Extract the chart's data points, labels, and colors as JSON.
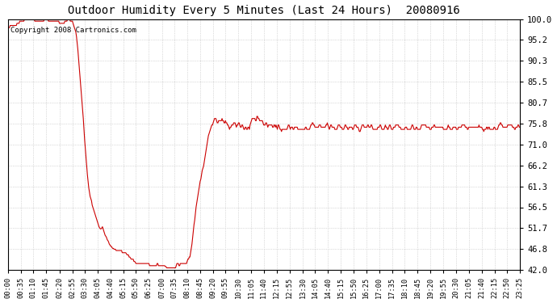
{
  "title": "Outdoor Humidity Every 5 Minutes (Last 24 Hours)  20080916",
  "copyright_text": "Copyright 2008 Cartronics.com",
  "line_color": "#cc0000",
  "bg_color": "#ffffff",
  "grid_color": "#aaaaaa",
  "ylim": [
    42.0,
    100.0
  ],
  "yticks": [
    42.0,
    46.8,
    51.7,
    56.5,
    61.3,
    66.2,
    71.0,
    75.8,
    80.7,
    85.5,
    90.3,
    95.2,
    100.0
  ],
  "x_labels": [
    "00:00",
    "00:35",
    "01:10",
    "01:45",
    "02:20",
    "02:55",
    "03:30",
    "04:05",
    "04:40",
    "05:15",
    "05:50",
    "06:25",
    "07:00",
    "07:35",
    "08:10",
    "08:45",
    "09:20",
    "09:55",
    "10:30",
    "11:05",
    "11:40",
    "12:15",
    "12:55",
    "13:30",
    "14:05",
    "14:40",
    "15:15",
    "15:50",
    "16:25",
    "17:00",
    "17:35",
    "18:10",
    "18:45",
    "19:20",
    "19:55",
    "20:30",
    "21:05",
    "21:40",
    "22:15",
    "22:50",
    "23:25"
  ],
  "humidity_values": [
    98.0,
    98.0,
    98.0,
    98.5,
    98.5,
    98.5,
    98.5,
    98.5,
    98.5,
    98.5,
    98.5,
    98.5,
    98.5,
    99.0,
    99.0,
    99.0,
    99.0,
    99.5,
    99.5,
    99.5,
    99.5,
    99.5,
    99.5,
    99.5,
    100.0,
    100.0,
    100.0,
    100.0,
    100.0,
    100.0,
    100.0,
    100.0,
    100.0,
    100.0,
    100.0,
    100.0,
    100.0,
    100.0,
    100.0,
    99.5,
    99.5,
    99.5,
    99.5,
    99.5,
    99.5,
    99.5,
    99.5,
    99.5,
    99.5,
    99.5,
    99.5,
    99.5,
    99.5,
    100.0,
    100.0,
    100.0,
    100.0,
    100.0,
    100.0,
    99.5,
    99.5,
    99.5,
    99.5,
    99.5,
    99.5,
    99.5,
    99.5,
    99.5,
    99.5,
    99.5,
    99.5,
    99.5,
    99.5,
    99.5,
    99.5,
    99.0,
    99.0,
    99.0,
    99.0,
    99.0,
    99.0,
    99.0,
    99.0,
    99.5,
    99.5,
    99.5,
    99.5,
    100.0,
    100.0,
    100.0,
    100.0,
    99.5,
    99.5,
    99.5,
    99.5,
    99.0,
    98.5,
    98.0,
    97.5,
    97.0,
    96.0,
    94.5,
    93.0,
    91.0,
    89.0,
    87.0,
    85.0,
    83.0,
    81.0,
    79.0,
    77.0,
    74.5,
    72.0,
    70.0,
    68.0,
    66.0,
    64.0,
    62.5,
    61.0,
    60.0,
    59.0,
    58.5,
    58.0,
    57.0,
    56.5,
    56.0,
    55.5,
    55.0,
    54.5,
    54.0,
    53.5,
    53.0,
    52.5,
    52.0,
    51.7,
    51.5,
    51.5,
    51.7,
    52.0,
    51.5,
    51.0,
    50.5,
    50.0,
    49.8,
    49.5,
    49.0,
    48.8,
    48.5,
    48.0,
    47.8,
    47.5,
    47.5,
    47.2,
    47.0,
    47.0,
    46.8,
    46.8,
    46.8,
    46.5,
    46.5,
    46.5,
    46.5,
    46.5,
    46.5,
    46.5,
    46.5,
    46.5,
    46.0,
    46.0,
    46.0,
    46.0,
    46.0,
    46.0,
    45.8,
    45.5,
    45.5,
    45.5,
    45.0,
    45.0,
    44.8,
    44.5,
    44.5,
    44.5,
    44.5,
    44.0,
    44.0,
    43.8,
    43.5,
    43.5,
    43.5,
    43.5,
    43.5,
    43.5,
    43.5,
    43.5,
    43.5,
    43.5,
    43.5,
    43.5,
    43.5,
    43.5,
    43.5,
    43.5,
    43.5,
    43.5,
    43.5,
    43.5,
    43.0,
    43.0,
    43.0,
    43.0,
    43.0,
    43.0,
    43.0,
    43.0,
    43.0,
    43.0,
    43.0,
    43.5,
    43.5,
    43.0,
    43.0,
    43.0,
    43.0,
    43.0,
    43.0,
    43.0,
    43.0,
    43.0,
    43.0,
    42.8,
    42.8,
    42.5,
    42.5,
    42.5,
    42.5,
    42.5,
    42.5,
    42.5,
    42.5,
    42.5,
    42.5,
    42.5,
    42.5,
    42.5,
    42.5,
    43.0,
    43.5,
    43.5,
    43.5,
    43.0,
    43.0,
    43.5,
    43.5,
    43.5,
    43.5,
    43.5,
    43.5,
    43.5,
    43.5,
    43.5,
    43.5,
    44.0,
    44.5,
    44.5,
    45.0,
    45.0,
    46.0,
    47.0,
    48.0,
    49.5,
    51.0,
    52.5,
    53.5,
    55.0,
    56.5,
    57.5,
    58.5,
    59.5,
    60.5,
    61.5,
    62.5,
    63.0,
    64.0,
    65.0,
    65.5,
    66.0,
    67.0,
    68.0,
    69.0,
    70.0,
    71.0,
    72.0,
    73.0,
    73.5,
    74.0,
    74.5,
    75.0,
    75.5,
    75.5,
    76.0,
    76.5,
    77.0,
    77.0,
    77.0,
    76.5,
    76.0,
    76.0,
    76.5,
    76.5,
    76.5,
    76.5,
    76.5,
    77.0,
    76.5,
    76.5,
    76.0,
    76.0,
    76.5,
    76.0,
    76.0,
    75.5,
    75.5,
    75.0,
    74.5,
    75.0,
    75.0,
    75.5,
    75.5,
    75.5,
    76.0,
    76.0,
    76.0,
    75.5,
    75.0,
    75.5,
    75.5,
    76.0,
    76.0,
    75.5,
    75.0,
    75.0,
    75.5,
    75.5,
    75.0,
    74.5,
    74.5,
    75.0,
    75.0,
    74.5,
    74.5,
    75.0,
    75.0,
    74.5,
    75.5,
    76.0,
    76.5,
    77.0,
    77.0,
    77.0,
    77.0,
    77.0,
    76.5,
    76.5,
    77.5,
    77.5,
    77.0,
    77.0,
    76.5,
    76.5,
    76.5,
    76.5,
    76.5,
    76.0,
    75.5,
    75.5,
    75.5,
    76.0,
    76.0,
    75.5,
    75.0,
    75.5,
    75.5,
    75.5,
    75.5,
    75.5,
    75.5,
    75.0,
    75.0,
    75.5,
    75.5,
    75.0,
    75.5,
    75.0,
    74.5,
    75.5,
    75.5,
    75.0,
    74.5,
    74.5,
    74.0,
    74.5,
    74.5,
    74.5,
    74.5,
    74.5,
    74.5,
    74.5,
    74.5,
    75.0,
    75.5,
    75.5,
    75.0,
    74.5,
    75.0,
    75.0,
    75.0,
    74.5,
    74.5,
    75.0,
    75.0,
    75.0,
    75.0,
    75.0,
    74.5,
    74.5,
    74.5,
    74.5,
    74.5,
    74.5,
    74.5,
    74.5,
    74.5,
    74.5,
    74.5,
    75.0,
    75.0,
    74.5,
    74.5,
    74.5,
    74.5,
    74.5,
    75.0,
    75.5,
    75.5,
    76.0,
    76.0,
    75.5,
    75.5,
    75.0,
    75.0,
    75.0,
    75.0,
    75.0,
    75.0,
    75.5,
    75.5,
    75.5,
    75.0,
    75.0,
    75.0,
    75.0,
    75.0,
    75.0,
    75.0,
    75.5,
    75.5,
    76.0,
    75.5,
    75.0,
    74.5,
    75.0,
    75.5,
    75.5,
    75.0,
    75.0,
    75.0,
    75.0,
    74.5,
    74.5,
    74.5,
    74.5,
    75.0,
    75.5,
    75.5,
    75.5,
    75.0,
    75.0,
    75.0,
    74.5,
    74.5,
    74.5,
    75.0,
    75.5,
    75.5,
    75.0,
    75.0,
    74.5,
    74.5,
    75.0,
    75.0,
    75.0,
    75.0,
    75.0,
    74.5,
    74.5,
    75.0,
    75.5,
    75.5,
    75.5,
    75.0,
    75.0,
    75.0,
    74.5,
    74.0,
    74.0,
    74.5,
    75.0,
    75.5,
    75.5,
    75.5,
    75.0,
    75.0,
    75.0,
    75.0,
    75.0,
    75.5,
    75.5,
    75.0,
    75.0,
    75.0,
    75.5,
    75.5,
    75.0,
    74.5,
    74.5,
    74.5,
    74.5,
    74.5,
    74.5,
    74.5,
    75.0,
    75.0,
    75.0,
    75.5,
    75.5,
    75.0,
    74.5,
    74.5,
    74.5,
    74.5,
    75.0,
    75.5,
    75.0,
    75.0,
    74.5,
    74.5,
    75.0,
    75.5,
    75.5,
    75.0,
    74.5,
    74.5,
    74.5,
    75.0,
    75.0,
    75.0,
    75.5,
    75.5,
    75.5,
    75.5,
    75.5,
    75.0,
    75.0,
    75.0,
    74.5,
    74.5,
    74.5,
    74.5,
    74.5,
    74.5,
    75.0,
    75.0,
    75.0,
    74.5,
    74.5,
    74.5,
    74.5,
    74.5,
    74.5,
    75.0,
    75.5,
    75.5,
    75.0,
    74.5,
    74.5,
    74.5,
    75.0,
    75.0,
    74.5,
    74.5,
    74.5,
    74.5,
    74.5,
    75.0,
    75.5,
    75.5,
    75.5,
    75.5,
    75.5,
    75.5,
    75.5,
    75.0,
    75.0,
    75.0,
    75.0,
    75.0,
    74.5,
    74.5,
    74.5,
    75.0,
    75.0,
    75.0,
    75.5,
    75.5,
    75.0,
    75.0,
    75.0,
    75.0,
    75.0,
    75.0,
    75.0,
    75.0,
    75.0,
    75.0,
    75.0,
    75.0,
    74.5,
    74.5,
    74.5,
    74.5,
    74.5,
    74.5,
    75.0,
    75.5,
    75.0,
    75.0,
    74.5,
    74.5,
    74.5,
    74.5,
    75.0,
    75.0,
    75.0,
    75.0,
    75.0,
    74.5,
    74.5,
    74.5,
    75.0,
    75.0,
    75.0,
    75.0,
    75.0,
    75.5,
    75.5,
    75.5,
    75.5,
    75.5,
    75.0,
    75.0,
    75.0,
    74.5,
    74.5,
    75.0,
    75.0,
    75.0,
    75.0,
    75.0,
    75.0,
    75.0,
    75.0,
    75.0,
    75.0,
    75.0,
    75.0,
    75.0,
    75.0,
    75.0,
    75.5,
    75.0,
    75.0,
    75.0,
    75.0,
    74.5,
    74.5,
    74.0,
    74.5,
    74.5,
    74.5,
    75.0,
    75.0,
    74.5,
    75.0,
    75.0,
    74.5,
    74.5,
    74.5,
    74.5,
    74.5,
    74.5,
    75.0,
    75.0,
    74.5,
    74.5,
    74.5,
    74.5,
    75.0,
    75.5,
    75.5,
    76.0,
    76.0,
    75.5,
    75.5,
    75.0,
    75.0,
    75.0,
    75.0,
    75.0,
    75.0,
    75.0,
    75.5,
    75.5,
    75.5,
    75.5,
    75.5,
    75.5,
    75.5,
    75.0,
    75.0,
    75.0,
    74.5,
    74.5,
    75.0,
    75.0,
    75.0,
    75.5,
    75.5,
    75.0,
    75.0
  ]
}
